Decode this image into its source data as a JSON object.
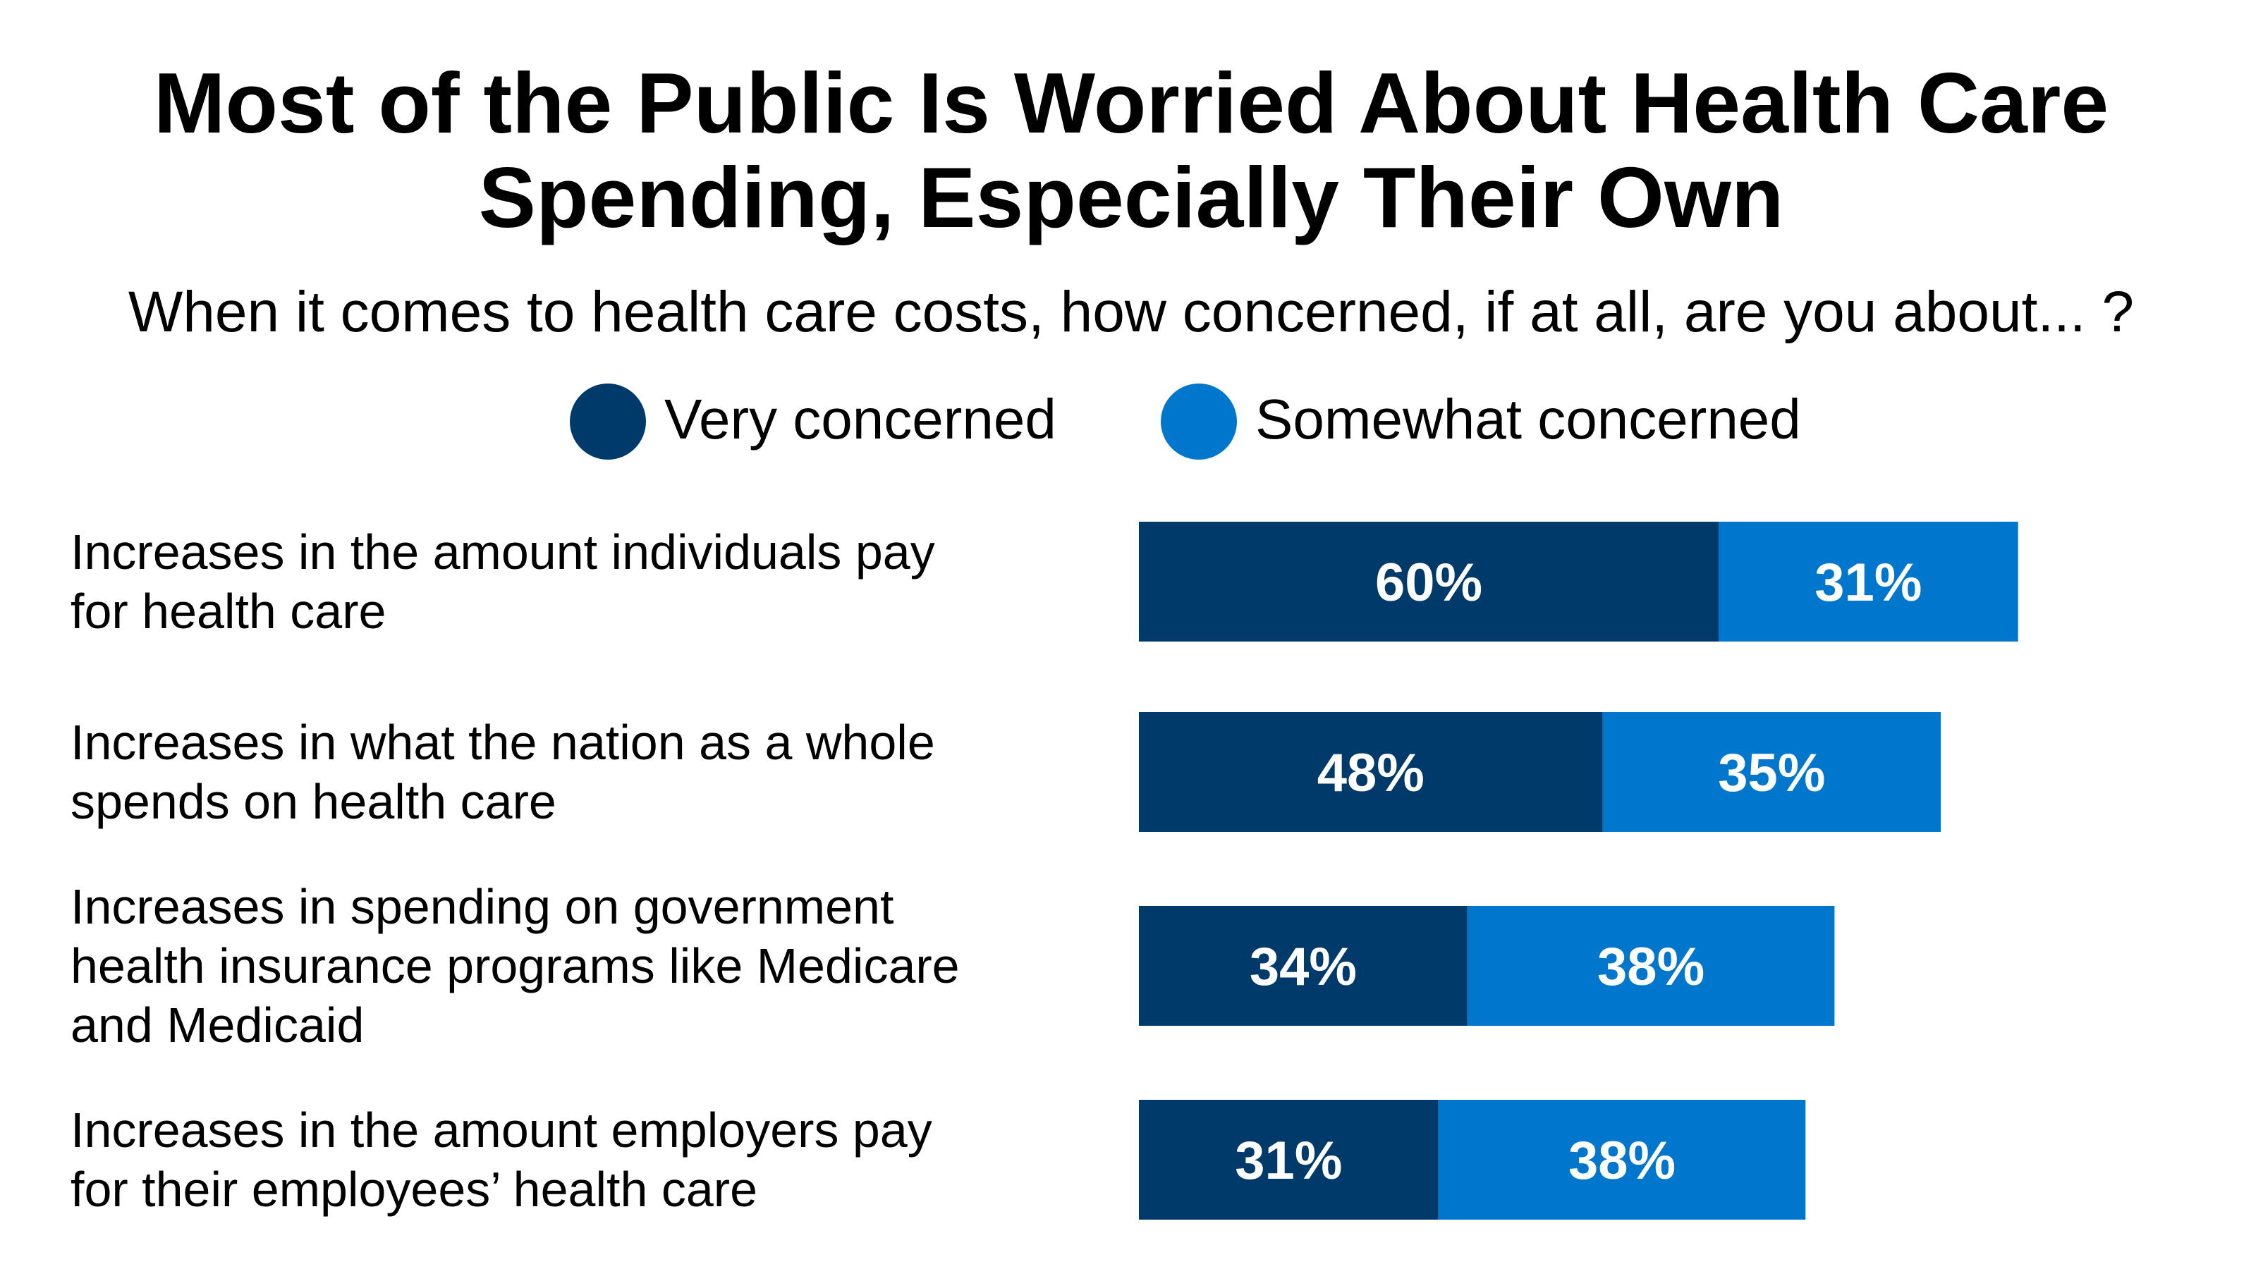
{
  "chart_data": {
    "type": "bar",
    "orientation": "horizontal",
    "stacked": true,
    "title": "Most of the Public Is Worried About Health Care Spending, Especially Their Own",
    "title_lines": [
      "Most of the Public Is Worried About Health Care",
      "Spending, Especially Their Own"
    ],
    "subtitle": "When it comes to health care costs, how concerned, if at all, are you about... ?",
    "categories": [
      "Increases in the amount individuals pay for health care",
      "Increases in what the nation as a whole spends on health care",
      "Increases in spending on government health insurance programs like Medicare and Medicaid",
      "Increases in the amount employers pay for their employees’ health care"
    ],
    "category_lines": [
      [
        "Increases in the amount individuals pay",
        "for health care"
      ],
      [
        "Increases in what the nation as a whole",
        "spends on health care"
      ],
      [
        "Increases in spending on government",
        "health insurance programs like Medicare",
        "and Medicaid"
      ],
      [
        "Increases in the amount employers pay",
        "for their employees’ health care"
      ]
    ],
    "series": [
      {
        "name": "Very concerned",
        "color": "#003a6b",
        "values": [
          60,
          48,
          34,
          31
        ],
        "labels": [
          "60%",
          "48%",
          "34%",
          "31%"
        ]
      },
      {
        "name": "Somewhat concerned",
        "color": "#0077cc",
        "values": [
          31,
          35,
          38,
          38
        ],
        "labels": [
          "31%",
          "35%",
          "38%",
          "38%"
        ]
      }
    ],
    "xlim": [
      0,
      100
    ],
    "value_format": "percent",
    "legend_position": "top-center",
    "grid": false,
    "axes_visible": false
  }
}
